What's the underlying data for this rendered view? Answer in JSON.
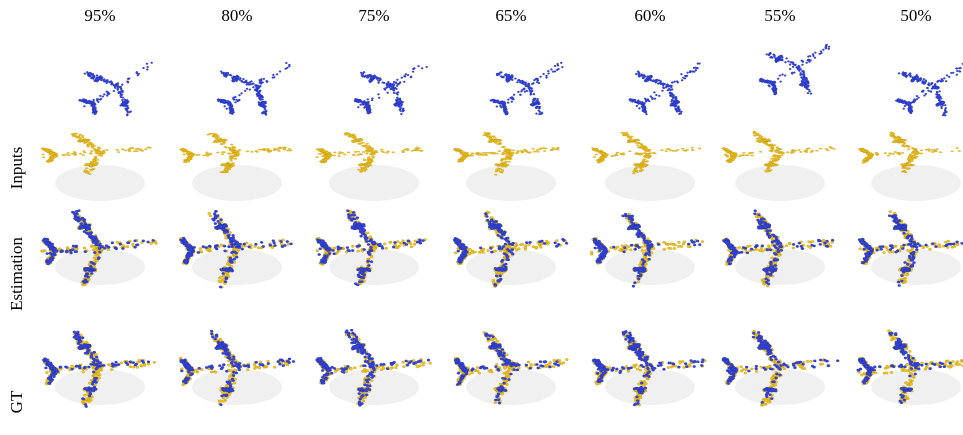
{
  "column_headers": [
    "95%",
    "80%",
    "75%",
    "65%",
    "60%",
    "55%",
    "50%"
  ],
  "row_labels": [
    "Inputs",
    "Estimation",
    "GT"
  ],
  "colors": {
    "source_cloud": "#3344dd",
    "target_cloud": "#f2c21a",
    "background": "#ffffff"
  },
  "icons": {
    "cloud_shape": "airplane-point-cloud"
  }
}
